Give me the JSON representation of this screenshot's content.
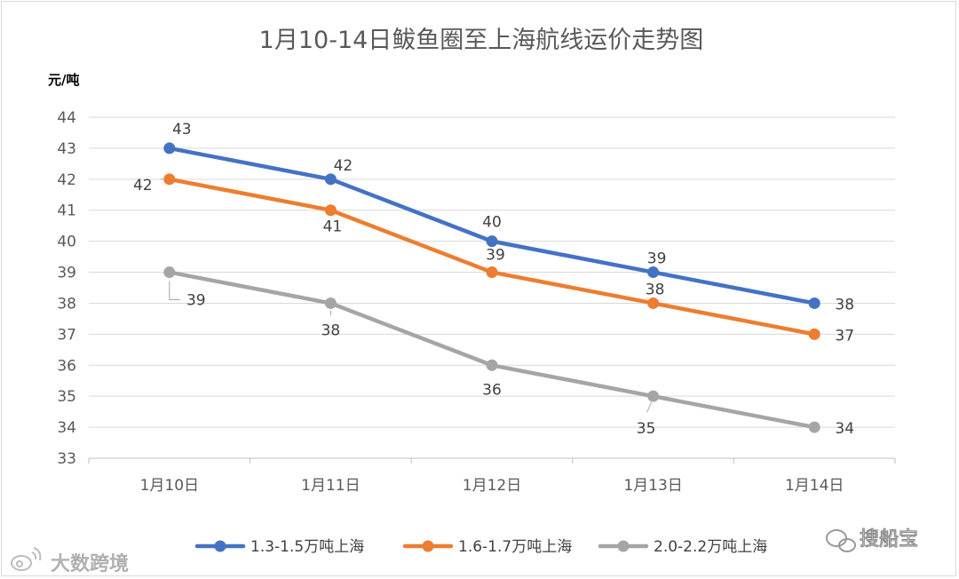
{
  "chart_data": {
    "type": "line",
    "title": "1月10-14日鲅鱼圈至上海航线运价走势图",
    "ylabel": "元/吨",
    "xlabel": "",
    "categories": [
      "1月10日",
      "1月11日",
      "1月12日",
      "1月13日",
      "1月14日"
    ],
    "ylim": [
      33,
      44
    ],
    "yticks": [
      33,
      34,
      35,
      36,
      37,
      38,
      39,
      40,
      41,
      42,
      43,
      44
    ],
    "grid": true,
    "legend_position": "bottom",
    "series": [
      {
        "name": "1.3-1.5万吨上海",
        "color": "#4472C4",
        "values": [
          43,
          42,
          40,
          39,
          38
        ]
      },
      {
        "name": "1.6-1.7万吨上海",
        "color": "#ED7D31",
        "values": [
          42,
          41,
          39,
          38,
          37
        ]
      },
      {
        "name": "2.0-2.2万吨上海",
        "color": "#A5A5A5",
        "values": [
          39,
          38,
          36,
          35,
          34
        ]
      }
    ]
  },
  "watermarks": {
    "left": "大数跨境",
    "right": "搜船宝"
  },
  "colors": {
    "gridline": "#d9d9d9",
    "axis_text": "#595959",
    "watermark": "#bfbfbf"
  }
}
